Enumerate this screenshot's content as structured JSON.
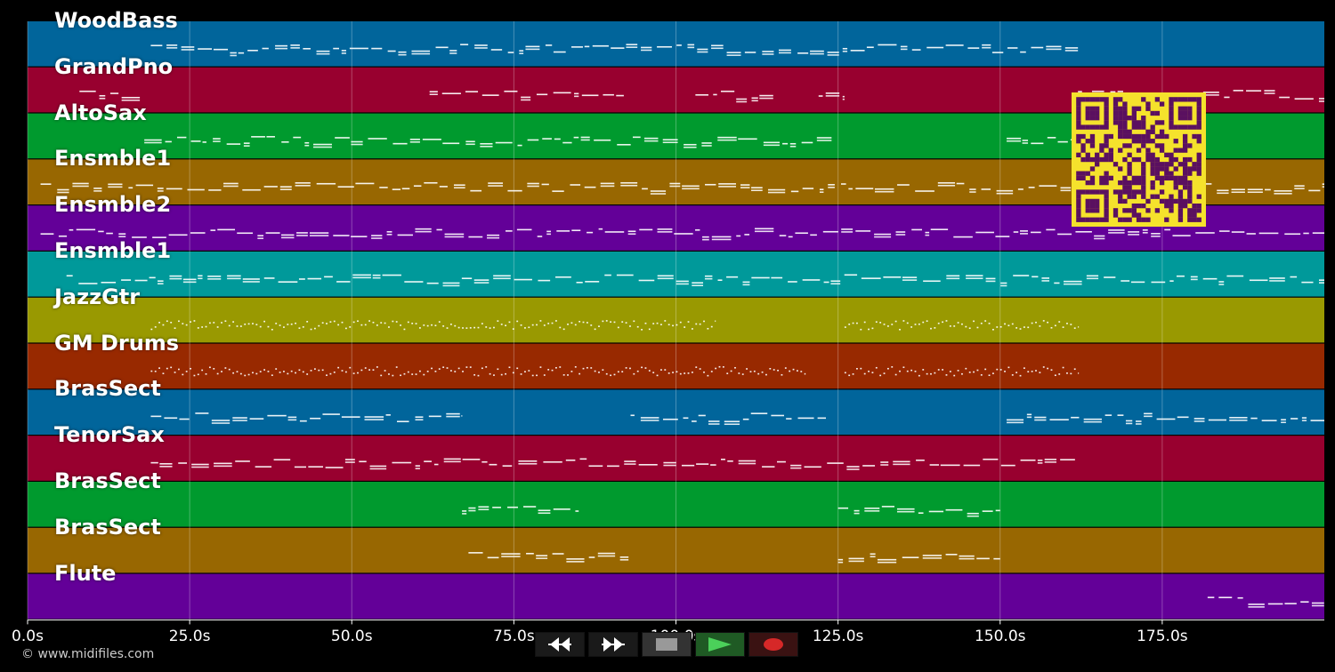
{
  "tracks": [
    {
      "name": "WoodBass",
      "color": "#01659b"
    },
    {
      "name": "GrandPno",
      "color": "#98002f"
    },
    {
      "name": "AltoSax",
      "color": "#009a2e"
    },
    {
      "name": "Ensmble1",
      "color": "#986701"
    },
    {
      "name": "Ensmble2",
      "color": "#630098"
    },
    {
      "name": "Ensmble1",
      "color": "#00999a"
    },
    {
      "name": "JazzGtr",
      "color": "#999901"
    },
    {
      "name": "GM Drums",
      "color": "#982900"
    },
    {
      "name": "BrasSect",
      "color": "#01659b"
    },
    {
      "name": "TenorSax",
      "color": "#98002f"
    },
    {
      "name": "BrasSect",
      "color": "#009a2e"
    },
    {
      "name": "BrasSect",
      "color": "#986701"
    },
    {
      "name": "Flute",
      "color": "#630098"
    }
  ],
  "timeline": {
    "ticks": [
      "0.0s",
      "25.0s",
      "50.0s",
      "75.0s",
      "100.0s",
      "125.0s",
      "150.0s",
      "175.0s"
    ],
    "duration_s": 200
  },
  "copyright": "© www.midifiles.com",
  "transport": {
    "rewind_icon": "rewind-icon",
    "forward_icon": "fast-forward-icon",
    "stop_icon": "stop-icon",
    "play_icon": "play-icon",
    "record_icon": "record-icon"
  },
  "colors": {
    "background": "#000000",
    "note": "#ffffff",
    "qr_fg": "#5a1060",
    "qr_bg": "#f5e22c"
  }
}
